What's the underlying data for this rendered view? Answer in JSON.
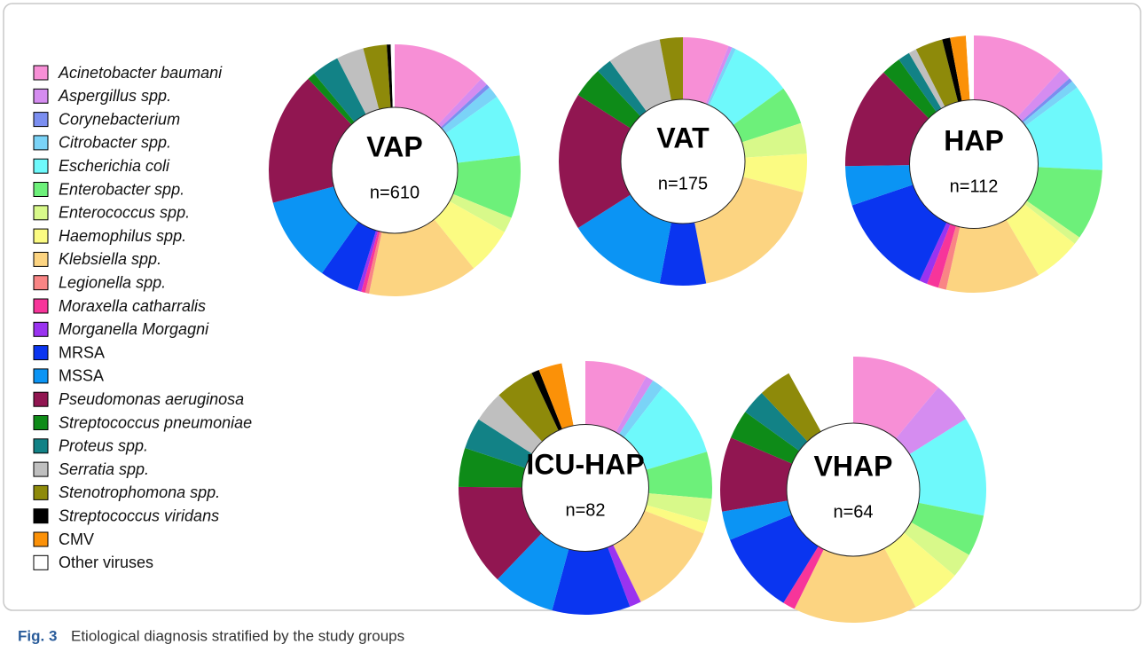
{
  "legend": {
    "categories": [
      "Acinetobacter baumani",
      "Aspergillus spp.",
      "Corynebacterium",
      "Citrobacter spp.",
      "Escherichia coli",
      "Enterobacter spp.",
      "Enterococcus spp.",
      "Haemophilus spp.",
      "Klebsiella spp.",
      "Legionella spp.",
      "Moraxella catharralis",
      "Morganella Morgagni",
      "MRSA",
      "MSSA",
      "Pseudomonas aeruginosa",
      "Streptococcus pneumoniae",
      "Proteus spp.",
      "Serratia spp.",
      "Stenotrophomona spp.",
      "Streptococcus viridans",
      "CMV",
      "Other viruses"
    ],
    "colors": [
      "#f78fd6",
      "#d58cf0",
      "#7b8ef0",
      "#7ad3f7",
      "#6ef9fb",
      "#6df07a",
      "#d8f98a",
      "#fbfb82",
      "#fcd481",
      "#f98585",
      "#f7359a",
      "#9a33f0",
      "#0a35f0",
      "#0b94f4",
      "#911651",
      "#0e8b18",
      "#128286",
      "#bfbfbf",
      "#8e8a0a",
      "#000000",
      "#fb9108",
      "#ffffff"
    ],
    "italic": [
      true,
      true,
      true,
      true,
      true,
      true,
      true,
      true,
      true,
      true,
      true,
      true,
      false,
      false,
      true,
      true,
      true,
      true,
      true,
      true,
      false,
      false
    ]
  },
  "chart_data": [
    {
      "type": "pie",
      "title": "VAP",
      "subtitle": "n=610",
      "values": [
        12,
        1,
        0.5,
        1.5,
        8,
        8,
        2,
        6,
        14,
        0.5,
        0.5,
        0.5,
        5,
        11,
        17,
        1,
        3.5,
        3.5,
        3,
        0.5,
        0,
        0.5
      ]
    },
    {
      "type": "pie",
      "title": "VAT",
      "subtitle": "n=175",
      "values": [
        6,
        0.5,
        0,
        0.5,
        8,
        5,
        4,
        5,
        18,
        0,
        0,
        0,
        6,
        13,
        18,
        4,
        2,
        7,
        3,
        0,
        0,
        0
      ]
    },
    {
      "type": "pie",
      "title": "HAP",
      "subtitle": "n=112",
      "values": [
        12,
        1.5,
        0.5,
        1,
        11,
        9,
        1,
        6,
        12,
        1,
        1.5,
        1,
        13,
        5,
        13,
        2.5,
        1.5,
        1,
        3.5,
        1,
        2,
        1
      ]
    },
    {
      "type": "pie",
      "title": "ICU-HAP",
      "subtitle": "n=82",
      "values": [
        8,
        1,
        0,
        1.5,
        10,
        6,
        3,
        1.5,
        12,
        0,
        0,
        1.5,
        10,
        8,
        13,
        5,
        4,
        4,
        5,
        1,
        3,
        3
      ]
    },
    {
      "type": "pie",
      "title": "VHAP",
      "subtitle": "n=64",
      "values": [
        11,
        5,
        0,
        0,
        12,
        5,
        3,
        6,
        15,
        0,
        1.5,
        0,
        10,
        3.5,
        9,
        3.5,
        3,
        0,
        4,
        0,
        0,
        8
      ]
    }
  ],
  "caption": {
    "label": "Fig. 3",
    "text": "Etiological diagnosis stratified by the study groups"
  }
}
